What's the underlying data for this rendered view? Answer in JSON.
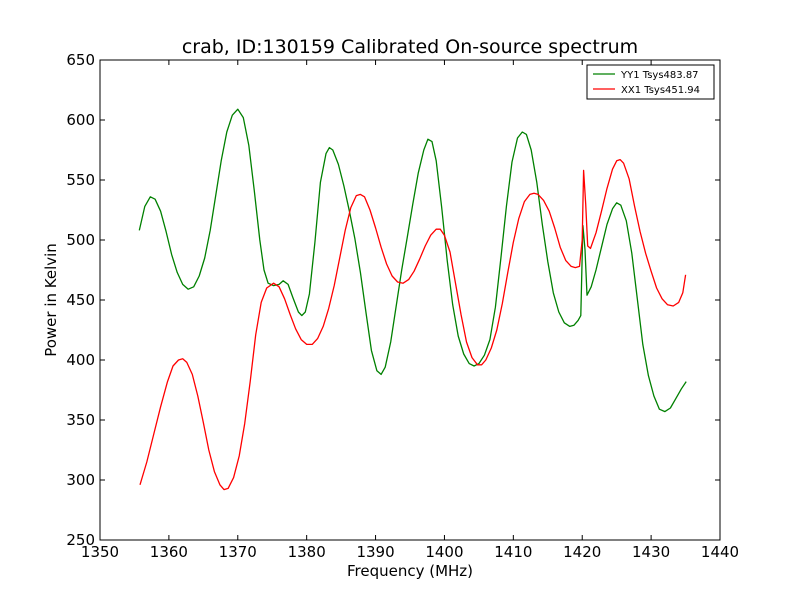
{
  "chart_data": {
    "type": "line",
    "title": "crab, ID:130159 Calibrated On-source spectrum",
    "xlabel": "Frequency (MHz)",
    "ylabel": "Power in Kelvin",
    "xlim": [
      1350,
      1440
    ],
    "ylim": [
      250,
      650
    ],
    "xticks": [
      "1350",
      "1360",
      "1370",
      "1380",
      "1390",
      "1400",
      "1410",
      "1420",
      "1430",
      "1440"
    ],
    "yticks": [
      "250",
      "300",
      "350",
      "400",
      "450",
      "500",
      "550",
      "600",
      "650"
    ],
    "grid": false,
    "legend_position": "top-right",
    "series": [
      {
        "name": "YY1 Tsys483.87",
        "color": "#008000",
        "points": [
          [
            1355.7,
            508
          ],
          [
            1356.5,
            528
          ],
          [
            1357.3,
            536
          ],
          [
            1358.0,
            534
          ],
          [
            1358.8,
            524
          ],
          [
            1359.6,
            507
          ],
          [
            1360.4,
            488
          ],
          [
            1361.2,
            473
          ],
          [
            1362.0,
            463
          ],
          [
            1362.8,
            459
          ],
          [
            1363.6,
            461
          ],
          [
            1364.4,
            470
          ],
          [
            1365.2,
            485
          ],
          [
            1366.0,
            508
          ],
          [
            1366.8,
            537
          ],
          [
            1367.6,
            566
          ],
          [
            1368.4,
            590
          ],
          [
            1369.2,
            604
          ],
          [
            1370.0,
            609
          ],
          [
            1370.8,
            602
          ],
          [
            1371.6,
            579
          ],
          [
            1372.4,
            541
          ],
          [
            1373.2,
            500
          ],
          [
            1373.8,
            475
          ],
          [
            1374.4,
            464
          ],
          [
            1375.2,
            462
          ],
          [
            1376.0,
            463
          ],
          [
            1376.6,
            466
          ],
          [
            1377.3,
            463
          ],
          [
            1378.0,
            452
          ],
          [
            1378.8,
            440
          ],
          [
            1379.3,
            437
          ],
          [
            1379.8,
            440
          ],
          [
            1380.4,
            455
          ],
          [
            1381.2,
            498
          ],
          [
            1382.0,
            548
          ],
          [
            1382.8,
            572
          ],
          [
            1383.3,
            577
          ],
          [
            1383.8,
            575
          ],
          [
            1384.6,
            563
          ],
          [
            1385.4,
            545
          ],
          [
            1386.2,
            524
          ],
          [
            1387.0,
            501
          ],
          [
            1387.8,
            473
          ],
          [
            1388.6,
            440
          ],
          [
            1389.4,
            408
          ],
          [
            1390.2,
            391
          ],
          [
            1390.8,
            388
          ],
          [
            1391.4,
            394
          ],
          [
            1392.2,
            415
          ],
          [
            1393.0,
            445
          ],
          [
            1393.8,
            475
          ],
          [
            1394.6,
            502
          ],
          [
            1395.4,
            530
          ],
          [
            1396.2,
            556
          ],
          [
            1397.0,
            575
          ],
          [
            1397.6,
            584
          ],
          [
            1398.2,
            582
          ],
          [
            1398.8,
            566
          ],
          [
            1399.6,
            527
          ],
          [
            1400.4,
            483
          ],
          [
            1401.2,
            446
          ],
          [
            1402.0,
            420
          ],
          [
            1402.8,
            405
          ],
          [
            1403.6,
            397
          ],
          [
            1404.3,
            395
          ],
          [
            1405.0,
            397
          ],
          [
            1405.8,
            404
          ],
          [
            1406.6,
            417
          ],
          [
            1407.4,
            444
          ],
          [
            1408.2,
            485
          ],
          [
            1409.0,
            528
          ],
          [
            1409.8,
            565
          ],
          [
            1410.6,
            585
          ],
          [
            1411.3,
            590
          ],
          [
            1411.9,
            588
          ],
          [
            1412.6,
            575
          ],
          [
            1413.4,
            548
          ],
          [
            1414.2,
            513
          ],
          [
            1415.0,
            482
          ],
          [
            1415.8,
            456
          ],
          [
            1416.6,
            440
          ],
          [
            1417.4,
            431
          ],
          [
            1418.2,
            428
          ],
          [
            1418.8,
            429
          ],
          [
            1419.4,
            433
          ],
          [
            1419.8,
            437
          ],
          [
            1420.1,
            512
          ],
          [
            1420.4,
            492
          ],
          [
            1420.7,
            454
          ],
          [
            1421.3,
            461
          ],
          [
            1422.0,
            475
          ],
          [
            1422.8,
            494
          ],
          [
            1423.6,
            513
          ],
          [
            1424.4,
            526
          ],
          [
            1425.0,
            531
          ],
          [
            1425.6,
            529
          ],
          [
            1426.4,
            516
          ],
          [
            1427.2,
            489
          ],
          [
            1428.0,
            451
          ],
          [
            1428.8,
            413
          ],
          [
            1429.6,
            387
          ],
          [
            1430.4,
            370
          ],
          [
            1431.2,
            359
          ],
          [
            1432.0,
            357
          ],
          [
            1432.8,
            360
          ],
          [
            1433.6,
            368
          ],
          [
            1434.4,
            376
          ],
          [
            1435.1,
            382
          ]
        ]
      },
      {
        "name": "XX1 Tsys451.94",
        "color": "#ff0000",
        "points": [
          [
            1355.8,
            296
          ],
          [
            1356.8,
            315
          ],
          [
            1357.8,
            338
          ],
          [
            1358.8,
            361
          ],
          [
            1359.8,
            382
          ],
          [
            1360.6,
            395
          ],
          [
            1361.4,
            400
          ],
          [
            1362.0,
            401
          ],
          [
            1362.6,
            398
          ],
          [
            1363.4,
            388
          ],
          [
            1364.2,
            370
          ],
          [
            1365.0,
            348
          ],
          [
            1365.8,
            325
          ],
          [
            1366.6,
            307
          ],
          [
            1367.4,
            296
          ],
          [
            1368.0,
            292
          ],
          [
            1368.6,
            293
          ],
          [
            1369.4,
            302
          ],
          [
            1370.2,
            320
          ],
          [
            1371.0,
            347
          ],
          [
            1371.8,
            382
          ],
          [
            1372.6,
            421
          ],
          [
            1373.4,
            448
          ],
          [
            1374.2,
            460
          ],
          [
            1375.2,
            464
          ],
          [
            1376.0,
            461
          ],
          [
            1376.8,
            451
          ],
          [
            1377.6,
            438
          ],
          [
            1378.4,
            426
          ],
          [
            1379.2,
            417
          ],
          [
            1380.0,
            413
          ],
          [
            1380.8,
            413
          ],
          [
            1381.6,
            418
          ],
          [
            1382.4,
            428
          ],
          [
            1383.2,
            443
          ],
          [
            1384.0,
            462
          ],
          [
            1384.8,
            485
          ],
          [
            1385.6,
            508
          ],
          [
            1386.4,
            527
          ],
          [
            1387.2,
            537
          ],
          [
            1387.8,
            538
          ],
          [
            1388.4,
            536
          ],
          [
            1389.2,
            525
          ],
          [
            1390.0,
            510
          ],
          [
            1390.8,
            494
          ],
          [
            1391.6,
            480
          ],
          [
            1392.4,
            470
          ],
          [
            1393.2,
            465
          ],
          [
            1394.0,
            464
          ],
          [
            1394.8,
            467
          ],
          [
            1395.6,
            474
          ],
          [
            1396.4,
            484
          ],
          [
            1397.2,
            495
          ],
          [
            1398.0,
            504
          ],
          [
            1398.8,
            509
          ],
          [
            1399.4,
            509
          ],
          [
            1400.0,
            504
          ],
          [
            1400.8,
            490
          ],
          [
            1401.6,
            464
          ],
          [
            1402.4,
            438
          ],
          [
            1403.2,
            415
          ],
          [
            1404.0,
            402
          ],
          [
            1404.8,
            396
          ],
          [
            1405.4,
            396
          ],
          [
            1406.0,
            400
          ],
          [
            1406.8,
            410
          ],
          [
            1407.6,
            425
          ],
          [
            1408.4,
            447
          ],
          [
            1409.2,
            473
          ],
          [
            1410.0,
            498
          ],
          [
            1410.8,
            518
          ],
          [
            1411.6,
            532
          ],
          [
            1412.4,
            538
          ],
          [
            1413.0,
            539
          ],
          [
            1413.6,
            538
          ],
          [
            1414.4,
            533
          ],
          [
            1415.2,
            524
          ],
          [
            1416.0,
            510
          ],
          [
            1416.8,
            494
          ],
          [
            1417.6,
            483
          ],
          [
            1418.4,
            478
          ],
          [
            1419.0,
            477
          ],
          [
            1419.6,
            478
          ],
          [
            1420.0,
            500
          ],
          [
            1420.2,
            558
          ],
          [
            1420.5,
            530
          ],
          [
            1420.8,
            495
          ],
          [
            1421.2,
            493
          ],
          [
            1422.0,
            506
          ],
          [
            1422.8,
            524
          ],
          [
            1423.6,
            543
          ],
          [
            1424.4,
            559
          ],
          [
            1425.0,
            566
          ],
          [
            1425.5,
            567
          ],
          [
            1426.0,
            564
          ],
          [
            1426.8,
            551
          ],
          [
            1427.6,
            528
          ],
          [
            1428.4,
            507
          ],
          [
            1429.2,
            489
          ],
          [
            1430.0,
            474
          ],
          [
            1430.8,
            460
          ],
          [
            1431.6,
            451
          ],
          [
            1432.4,
            446
          ],
          [
            1433.2,
            445
          ],
          [
            1434.0,
            448
          ],
          [
            1434.6,
            456
          ],
          [
            1435.0,
            471
          ]
        ]
      }
    ]
  }
}
